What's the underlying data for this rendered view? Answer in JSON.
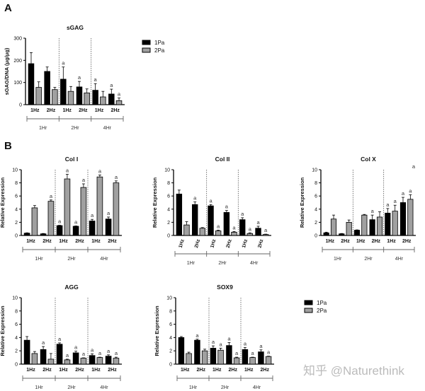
{
  "panels": {
    "a": "A",
    "b": "B"
  },
  "legend": [
    {
      "label": "1Pa",
      "color": "#000000"
    },
    {
      "label": "2Pa",
      "color": "#a0a0a0"
    }
  ],
  "watermark": "知乎 @Naturethink",
  "chart_data": [
    {
      "id": "sgag",
      "type": "bar",
      "title": "sGAG",
      "ylabel": "sGAG/DNA (μg/μg)",
      "ylim": [
        0,
        300
      ],
      "yticks": [
        0,
        100,
        200,
        300
      ],
      "categories": [
        "1Hz",
        "2Hz",
        "1Hz",
        "2Hz",
        "1Hz",
        "2Hz"
      ],
      "groups": [
        "1Hr",
        "2Hr",
        "4Hr"
      ],
      "rotated_ticks": false,
      "series": [
        {
          "name": "1Pa",
          "values": [
            185,
            150,
            115,
            80,
            65,
            48
          ],
          "errors": [
            50,
            20,
            55,
            25,
            30,
            22
          ],
          "annotations": [
            "",
            "",
            "a",
            "a",
            "a",
            "a"
          ]
        },
        {
          "name": "2Pa",
          "values": [
            78,
            68,
            60,
            53,
            35,
            18
          ],
          "errors": [
            25,
            10,
            22,
            18,
            25,
            12
          ],
          "annotations": [
            "",
            "",
            "",
            "",
            "",
            "a"
          ]
        }
      ]
    },
    {
      "id": "col1",
      "type": "bar",
      "title": "Col I",
      "ylabel": "Relative Expression",
      "ylim": [
        0,
        10
      ],
      "yticks": [
        0,
        2,
        4,
        6,
        8,
        10
      ],
      "categories": [
        "1Hz",
        "2Hz",
        "1Hz",
        "2Hz",
        "1Hz",
        "2Hz"
      ],
      "groups": [
        "1Hr",
        "2Hr",
        "4Hr"
      ],
      "rotated_ticks": false,
      "series": [
        {
          "name": "1Pa",
          "values": [
            0.35,
            0.25,
            1.5,
            1.4,
            2.2,
            2.5
          ],
          "errors": [
            0.05,
            0.05,
            0.05,
            0.05,
            0.25,
            0.3
          ],
          "annotations": [
            "",
            "",
            "a",
            "a",
            "a",
            "a"
          ]
        },
        {
          "name": "2Pa",
          "values": [
            4.2,
            5.2,
            8.6,
            7.3,
            8.9,
            8.0
          ],
          "errors": [
            0.35,
            0.2,
            0.7,
            0.55,
            0.3,
            0.3
          ],
          "annotations": [
            "",
            "a",
            "a",
            "a",
            "a",
            "a"
          ]
        }
      ]
    },
    {
      "id": "col2",
      "type": "bar",
      "title": "Col II",
      "ylabel": "Relative Expression",
      "ylim": [
        0,
        10
      ],
      "yticks": [
        0,
        2,
        4,
        6,
        8,
        10
      ],
      "categories": [
        "1Hz",
        "2Hz",
        "1Hz",
        "2Hz",
        "1Hz",
        "2Hz"
      ],
      "groups": [
        "1Hr",
        "2Hr",
        "4Hr"
      ],
      "rotated_ticks": true,
      "series": [
        {
          "name": "1Pa",
          "values": [
            6.3,
            4.7,
            4.5,
            3.5,
            2.4,
            1.1
          ],
          "errors": [
            0.6,
            0.4,
            0.2,
            0.3,
            0.3,
            0.3
          ],
          "annotations": [
            "",
            "a",
            "a",
            "a",
            "a",
            "a"
          ]
        },
        {
          "name": "2Pa",
          "values": [
            1.6,
            1.1,
            0.7,
            0.5,
            0.3,
            0.15
          ],
          "errors": [
            0.5,
            0.1,
            0.1,
            0.1,
            0.1,
            0.05
          ],
          "annotations": [
            "",
            "",
            "a",
            "a",
            "a",
            "a"
          ]
        }
      ]
    },
    {
      "id": "colx",
      "type": "bar",
      "title": "Col X",
      "ylabel": "Relative Expression",
      "ylim": [
        0,
        10
      ],
      "yticks": [
        0,
        2,
        4,
        6,
        8,
        10
      ],
      "categories": [
        "1Hz",
        "2Hz",
        "1Hz",
        "2Hz",
        "1Hz",
        "2Hz"
      ],
      "groups": [
        "1Hr",
        "2Hr",
        "4Hr"
      ],
      "rotated_ticks": false,
      "extra_annotation": "a",
      "series": [
        {
          "name": "1Pa",
          "values": [
            0.4,
            0.25,
            0.8,
            2.4,
            3.4,
            5.0
          ],
          "errors": [
            0.1,
            0.05,
            0.05,
            0.7,
            0.7,
            0.8
          ],
          "annotations": [
            "",
            "",
            "",
            "a",
            "a",
            "a"
          ]
        },
        {
          "name": "2Pa",
          "values": [
            2.5,
            2.0,
            3.1,
            2.8,
            3.7,
            5.5
          ],
          "errors": [
            0.6,
            0.35,
            0.1,
            0.8,
            0.9,
            0.7
          ],
          "annotations": [
            "",
            "",
            "",
            "",
            "a",
            "a"
          ]
        }
      ]
    },
    {
      "id": "agg",
      "type": "bar",
      "title": "AGG",
      "ylabel": "Relative Expression",
      "ylim": [
        0,
        10
      ],
      "yticks": [
        0,
        2,
        4,
        6,
        8,
        10
      ],
      "categories": [
        "1Hz",
        "2Hz",
        "1Hz",
        "2Hz",
        "1Hz",
        "2Hz"
      ],
      "groups": [
        "1Hr",
        "2Hr",
        "4Hr"
      ],
      "rotated_ticks": false,
      "series": [
        {
          "name": "1Pa",
          "values": [
            3.6,
            2.2,
            3.0,
            1.7,
            1.3,
            1.2
          ],
          "errors": [
            0.55,
            0.45,
            0.2,
            0.25,
            0.25,
            0.2
          ],
          "annotations": [
            "",
            "a",
            "a",
            "a",
            "a",
            "a"
          ]
        },
        {
          "name": "2Pa",
          "values": [
            1.6,
            0.75,
            0.65,
            0.9,
            1.0,
            0.9
          ],
          "errors": [
            0.3,
            0.85,
            0.1,
            0.05,
            0.05,
            0.15
          ],
          "annotations": [
            "",
            "",
            "a",
            "a",
            "a",
            "a"
          ]
        }
      ]
    },
    {
      "id": "sox9",
      "type": "bar",
      "title": "SOX9",
      "ylabel": "Relative Expression",
      "ylim": [
        0,
        10
      ],
      "yticks": [
        0,
        2,
        4,
        6,
        8,
        10
      ],
      "categories": [
        "1Hz",
        "2Hz",
        "1Hz",
        "2Hz",
        "1Hz",
        "2Hz"
      ],
      "groups": [
        "1Hr",
        "2Hr",
        "4Hr"
      ],
      "rotated_ticks": false,
      "series": [
        {
          "name": "1Pa",
          "values": [
            4.0,
            3.6,
            2.4,
            2.8,
            2.2,
            1.85
          ],
          "errors": [
            0.15,
            0.15,
            0.35,
            0.45,
            0.3,
            0.3
          ],
          "annotations": [
            "",
            "a",
            "a",
            "a",
            "a",
            "a"
          ]
        },
        {
          "name": "2Pa",
          "values": [
            1.6,
            2.0,
            2.1,
            0.95,
            1.0,
            1.15
          ],
          "errors": [
            0.2,
            0.25,
            0.3,
            0.1,
            0.05,
            0.05
          ],
          "annotations": [
            "",
            "",
            "a",
            "a",
            "a",
            "a"
          ]
        }
      ]
    }
  ]
}
